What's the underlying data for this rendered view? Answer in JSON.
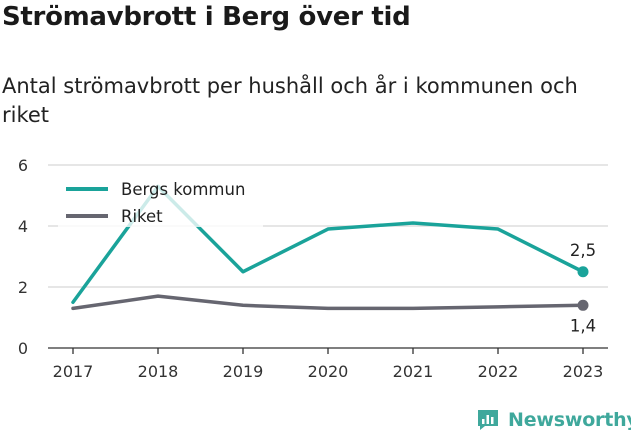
{
  "title": "Strömavbrott i Berg över tid",
  "subtitle": "Antal strömavbrott per hushåll och år i kommunen och riket",
  "brand": "Newsworthy",
  "colors": {
    "kommun": "#1aa39a",
    "riket": "#666670",
    "grid": "#d8d8d8",
    "axis": "#333333"
  },
  "chart_data": {
    "type": "line",
    "x": [
      "2017",
      "2018",
      "2019",
      "2020",
      "2021",
      "2022",
      "2023"
    ],
    "ylim": [
      0,
      6
    ],
    "yticks": [
      0,
      2,
      4,
      6
    ],
    "grid": true,
    "legend_position": "top-left",
    "series": [
      {
        "name": "Bergs kommun",
        "values": [
          1.5,
          5.3,
          2.5,
          3.9,
          4.1,
          3.9,
          2.5
        ],
        "end_label": "2,5"
      },
      {
        "name": "Riket",
        "values": [
          1.3,
          1.7,
          1.4,
          1.3,
          1.3,
          1.35,
          1.4
        ],
        "end_label": "1,4"
      }
    ]
  }
}
